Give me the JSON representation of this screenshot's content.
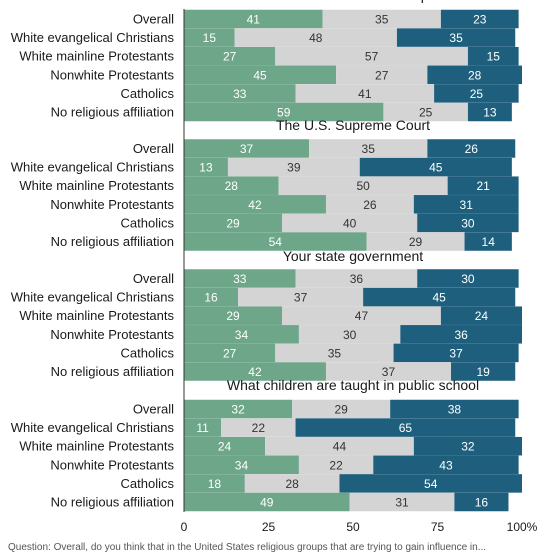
{
  "chart_data": {
    "type": "bar",
    "stacked": true,
    "orientation": "horizontal",
    "xlim": [
      0,
      100
    ],
    "x_ticks": [
      "0",
      "25",
      "50",
      "75",
      "100%"
    ],
    "colors": [
      "#6ea68a",
      "#d4d4d4",
      "#1e5f7e"
    ],
    "categories": [
      "Overall",
      "White evangelical Christians",
      "White mainline Protestants",
      "Nonwhite Protestants",
      "Catholics",
      "No religious affiliation"
    ],
    "panels": [
      {
        "title": "President Donald Trump",
        "series": [
          {
            "values": [
              41,
              15,
              27,
              45,
              33,
              59
            ]
          },
          {
            "values": [
              35,
              48,
              57,
              27,
              41,
              25
            ]
          },
          {
            "values": [
              23,
              35,
              15,
              28,
              25,
              13
            ]
          }
        ]
      },
      {
        "title": "The U.S. Supreme Court",
        "series": [
          {
            "values": [
              37,
              13,
              28,
              42,
              29,
              54
            ]
          },
          {
            "values": [
              35,
              39,
              50,
              26,
              40,
              29
            ]
          },
          {
            "values": [
              26,
              45,
              21,
              31,
              30,
              14
            ]
          }
        ]
      },
      {
        "title": "Your state government",
        "series": [
          {
            "values": [
              33,
              16,
              29,
              34,
              27,
              42
            ]
          },
          {
            "values": [
              36,
              37,
              47,
              30,
              35,
              37
            ]
          },
          {
            "values": [
              30,
              45,
              24,
              36,
              37,
              19
            ]
          }
        ]
      },
      {
        "title": "What children are taught in public school",
        "series": [
          {
            "values": [
              32,
              11,
              24,
              34,
              18,
              49
            ]
          },
          {
            "values": [
              29,
              22,
              44,
              22,
              28,
              31
            ]
          },
          {
            "values": [
              38,
              65,
              32,
              43,
              54,
              16
            ]
          }
        ]
      }
    ]
  },
  "footer_note": "Question: Overall, do you think that in the United States religious groups that are trying to gain influence in..."
}
